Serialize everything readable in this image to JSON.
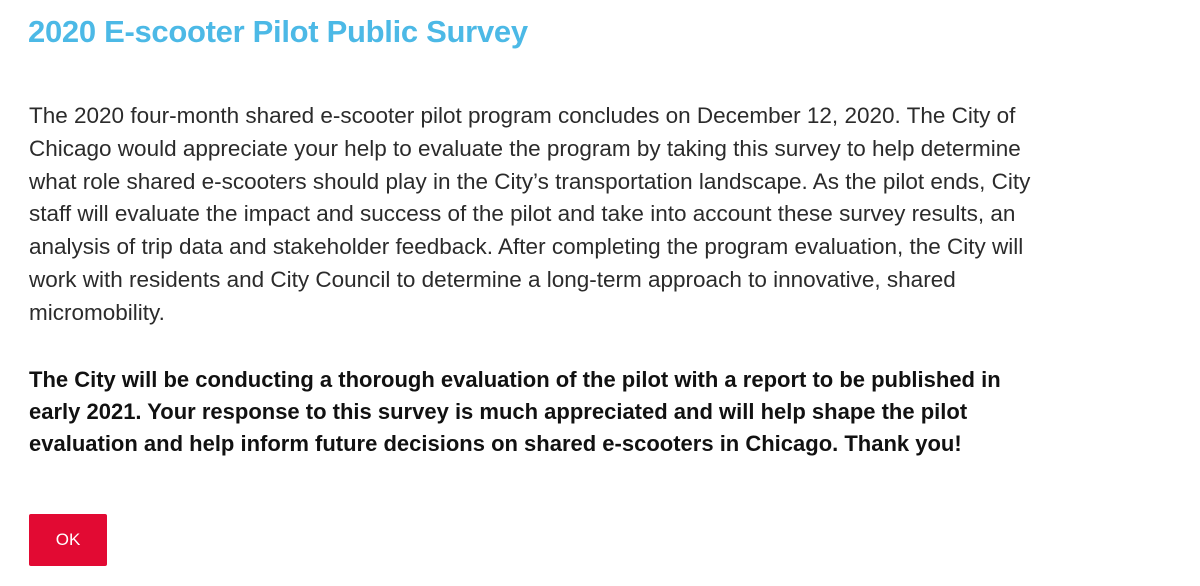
{
  "title": "2020 E-scooter Pilot Public Survey",
  "intro_lines": [
    "The 2020 four-month shared e-scooter pilot program concludes on December 12, 2020. The City of",
    "Chicago would appreciate your help to evaluate the program by taking this survey to help determine",
    "what role shared e-scooters should play in the City’s transportation landscape. As the pilot ends, City",
    "staff will evaluate the impact and success of the pilot and take into account these survey results, an",
    "analysis of trip data and stakeholder feedback. After completing the program evaluation, the City will",
    "work with residents and City Council to determine a long-term approach to innovative, shared",
    "micromobility."
  ],
  "bold_lines": [
    "The City will be conducting a thorough evaluation of the pilot with a report to be published in",
    "early 2021. Your response to this survey is much appreciated and will help shape the pilot",
    "evaluation and help inform future decisions on shared e-scooters in Chicago. Thank you!"
  ],
  "ok_label": "OK",
  "colors": {
    "title": "#4cb9e6",
    "button": "#e20a33"
  }
}
